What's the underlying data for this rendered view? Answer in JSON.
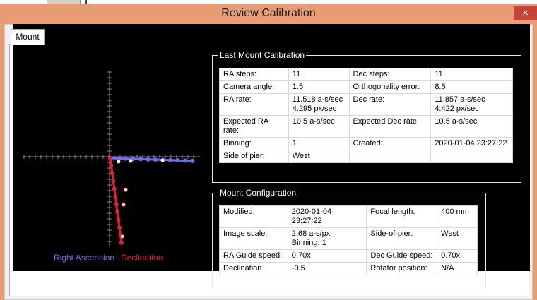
{
  "window": {
    "title": "Review Calibration",
    "close_glyph": "×"
  },
  "tabs": [
    {
      "label": "Mount"
    }
  ],
  "legend": {
    "ra": "Right Ascension",
    "dec": "Declination"
  },
  "colors": {
    "ra": "#6e70f0",
    "dec": "#e2232b"
  },
  "calibration": {
    "title": "Last Mount Calibration",
    "rows": [
      [
        "RA steps:",
        "11",
        "Dec steps:",
        "11"
      ],
      [
        "Camera angle:",
        "1.5",
        "Orthogonality error:",
        "8.5"
      ],
      [
        "RA rate:",
        "11.518 a-s/sec\n4.295 px/sec",
        "Dec rate:",
        "11.857 a-s/sec\n4.422 px/sec"
      ],
      [
        "Expected RA rate:",
        "10.5 a-s/sec",
        "Expected Dec rate:",
        "10.5 a-s/sec"
      ],
      [
        "Binning:",
        "1",
        "Created:",
        "2020-01-04 23:27:22"
      ],
      [
        "Side of pier:",
        "West",
        "",
        ""
      ]
    ]
  },
  "configuration": {
    "title": "Mount Configuration",
    "rows": [
      [
        "Modified:",
        "2020-01-04 23:27:22",
        "Focal length:",
        "400 mm"
      ],
      [
        "Image scale:",
        "2.68 a-s/px\nBinning: 1",
        "Side-of-pier:",
        "West"
      ],
      [
        "RA Guide speed:",
        "0.70x",
        "Dec Guide speed:",
        "0.70x"
      ],
      [
        "Declination",
        "-0.5",
        "Rotator position:",
        "N/A"
      ]
    ]
  }
}
